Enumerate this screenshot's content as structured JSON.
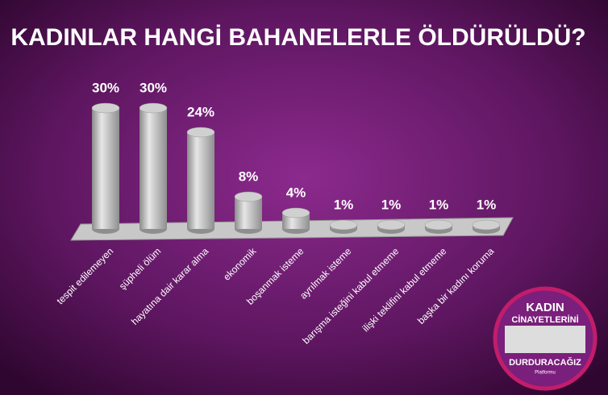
{
  "chart_data": {
    "type": "bar",
    "title": "KADINLAR HANGİ BAHANELERLE ÖLDÜRÜLDÜ?",
    "categories": [
      "tespit edilemeyen",
      "şüpheli ölüm",
      "hayatına dair karar alma",
      "ekonomik",
      "boşanmak isteme",
      "ayrılmak isteme",
      "barışma isteğini kabul etmeme",
      "ilişki teklifini kabul etmeme",
      "başka bir kadını koruma"
    ],
    "values": [
      30,
      30,
      24,
      8,
      4,
      1,
      1,
      1,
      1
    ],
    "value_labels": [
      "30%",
      "30%",
      "24%",
      "8%",
      "4%",
      "1%",
      "1%",
      "1%",
      "1%"
    ],
    "color": "#b8b8b8"
  },
  "logo": {
    "lines": [
      "KADIN",
      "CİNAYETLERİNİ",
      "DURDURACAĞIZ",
      "Platformu"
    ]
  }
}
